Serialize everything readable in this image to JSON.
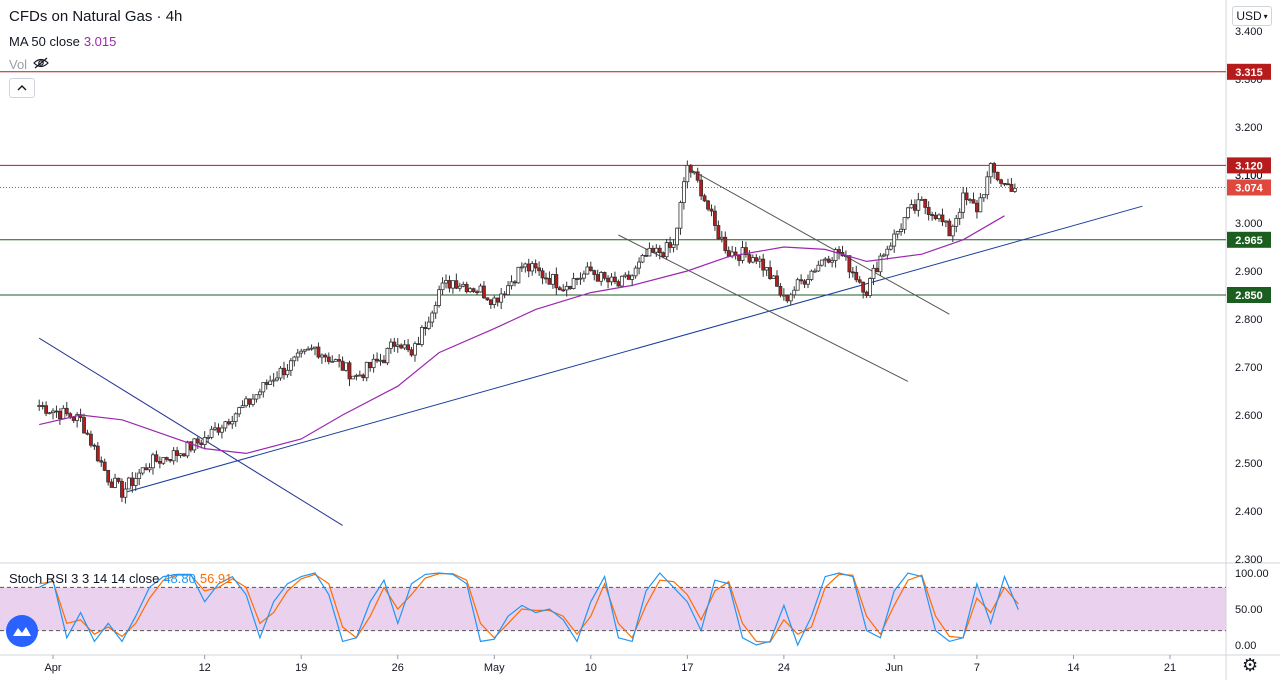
{
  "header": {
    "title": "CFDs on Natural Gas · 4h",
    "ma_label": "MA 50 close",
    "ma_value": "3.015",
    "vol_label": "Vol",
    "collapse_icon": "chevron-up-icon"
  },
  "currency_select": "USD",
  "indicator": {
    "label": "Stoch RSI 3 3 14 14 close",
    "k_value": "48.80",
    "d_value": "56.91"
  },
  "chart_data": {
    "type": "candlestick",
    "price_axis": {
      "ticks": [
        "3.400",
        "3.300",
        "3.200",
        "3.100",
        "3.000",
        "2.900",
        "2.800",
        "2.700",
        "2.600",
        "2.500",
        "2.400",
        "2.300"
      ],
      "range": [
        2.3,
        3.42
      ]
    },
    "time_axis": {
      "ticks": [
        "Apr",
        "12",
        "19",
        "26",
        "May",
        "10",
        "17",
        "24",
        "Jun",
        "7",
        "14",
        "21"
      ]
    },
    "horizontal_levels": [
      {
        "price": 3.315,
        "label": "3.315",
        "color": "#b71c1c"
      },
      {
        "price": 3.12,
        "label": "3.120",
        "color": "#b71c1c"
      },
      {
        "price": 2.965,
        "label": "2.965",
        "color": "#1b5e20"
      },
      {
        "price": 2.85,
        "label": "2.850",
        "color": "#1b5e20"
      }
    ],
    "last_price": {
      "price": 3.074,
      "label": "3.074",
      "color": "#e0483d"
    },
    "hidden_tag": "3.100",
    "trendlines": [
      {
        "name": "uptrend-support",
        "from": [
          "Apr 6",
          2.437
        ],
        "to": [
          "Jun 19",
          3.035
        ],
        "color": "#1a3e9c"
      },
      {
        "name": "downtrend-april",
        "from": [
          "Mar 31",
          2.76
        ],
        "to": [
          "Apr 22",
          2.37
        ],
        "color": "#283593"
      },
      {
        "name": "channel-upper",
        "from": [
          "May 17",
          3.115
        ],
        "to": [
          "Jun 5",
          2.81
        ],
        "color": "#555555"
      },
      {
        "name": "channel-lower",
        "from": [
          "May 12",
          2.975
        ],
        "to": [
          "Jun 2",
          2.67
        ],
        "color": "#555555"
      }
    ],
    "ma50": {
      "name": "MA 50 close",
      "color": "#9c27b0",
      "points": [
        [
          "Mar 31",
          2.58
        ],
        [
          "Apr 3",
          2.6
        ],
        [
          "Apr 6",
          2.59
        ],
        [
          "Apr 9",
          2.56
        ],
        [
          "Apr 12",
          2.53
        ],
        [
          "Apr 15",
          2.52
        ],
        [
          "Apr 19",
          2.55
        ],
        [
          "Apr 22",
          2.6
        ],
        [
          "Apr 26",
          2.66
        ],
        [
          "Apr 29",
          2.73
        ],
        [
          "May 3",
          2.78
        ],
        [
          "May 6",
          2.82
        ],
        [
          "May 10",
          2.855
        ],
        [
          "May 13",
          2.87
        ],
        [
          "May 17",
          2.9
        ],
        [
          "May 20",
          2.93
        ],
        [
          "May 24",
          2.95
        ],
        [
          "May 27",
          2.945
        ],
        [
          "May 30",
          2.92
        ],
        [
          "Jun 3",
          2.935
        ],
        [
          "Jun 6",
          2.965
        ],
        [
          "Jun 9",
          3.015
        ]
      ]
    },
    "closes": [
      [
        "Mar 31",
        2.62
      ],
      [
        "Apr 2",
        2.6
      ],
      [
        "Apr 3",
        2.59
      ],
      [
        "Apr 5",
        2.47
      ],
      [
        "Apr 6",
        2.44
      ],
      [
        "Apr 8",
        2.5
      ],
      [
        "Apr 10",
        2.52
      ],
      [
        "Apr 12",
        2.55
      ],
      [
        "Apr 14",
        2.6
      ],
      [
        "Apr 15",
        2.62
      ],
      [
        "Apr 17",
        2.68
      ],
      [
        "Apr 19",
        2.72
      ],
      [
        "Apr 20",
        2.74
      ],
      [
        "Apr 22",
        2.7
      ],
      [
        "Apr 23",
        2.68
      ],
      [
        "Apr 25",
        2.72
      ],
      [
        "Apr 26",
        2.76
      ],
      [
        "Apr 27",
        2.72
      ],
      [
        "Apr 28",
        2.79
      ],
      [
        "Apr 29",
        2.86
      ],
      [
        "Apr 30",
        2.88
      ],
      [
        "May 2",
        2.86
      ],
      [
        "May 3",
        2.84
      ],
      [
        "May 4",
        2.87
      ],
      [
        "May 5",
        2.91
      ],
      [
        "May 6",
        2.9
      ],
      [
        "May 8",
        2.87
      ],
      [
        "May 10",
        2.9
      ],
      [
        "May 11",
        2.88
      ],
      [
        "May 12",
        2.87
      ],
      [
        "May 13",
        2.89
      ],
      [
        "May 14",
        2.93
      ],
      [
        "May 16",
        2.95
      ],
      [
        "May 17",
        3.12
      ],
      [
        "May 18",
        3.07
      ],
      [
        "May 19",
        2.99
      ],
      [
        "May 20",
        2.94
      ],
      [
        "May 22",
        2.93
      ],
      [
        "May 23",
        2.89
      ],
      [
        "May 24",
        2.84
      ],
      [
        "May 25",
        2.87
      ],
      [
        "May 27",
        2.93
      ],
      [
        "May 28",
        2.94
      ],
      [
        "May 30",
        2.86
      ],
      [
        "May 31",
        2.93
      ],
      [
        "Jun 1",
        2.97
      ],
      [
        "Jun 2",
        3.02
      ],
      [
        "Jun 3",
        3.04
      ],
      [
        "Jun 4",
        3.02
      ],
      [
        "Jun 5",
        2.98
      ],
      [
        "Jun 6",
        3.05
      ],
      [
        "Jun 7",
        3.03
      ],
      [
        "Jun 8",
        3.11
      ],
      [
        "Jun 9",
        3.08
      ],
      [
        "Jun 10",
        3.074
      ]
    ],
    "stoch_rsi": {
      "ticks": [
        "100.00",
        "50.00",
        "0.00"
      ],
      "bands": [
        80,
        20
      ],
      "k_color": "#2196f3",
      "d_color": "#ff6d00",
      "k": [
        [
          "Mar 31",
          80
        ],
        [
          "Apr 1",
          90
        ],
        [
          "Apr 2",
          10
        ],
        [
          "Apr 3",
          45
        ],
        [
          "Apr 4",
          5
        ],
        [
          "Apr 5",
          30
        ],
        [
          "Apr 6",
          5
        ],
        [
          "Apr 7",
          40
        ],
        [
          "Apr 8",
          80
        ],
        [
          "Apr 9",
          95
        ],
        [
          "Apr 10",
          98
        ],
        [
          "Apr 11",
          98
        ],
        [
          "Apr 12",
          60
        ],
        [
          "Apr 13",
          85
        ],
        [
          "Apr 14",
          95
        ],
        [
          "Apr 15",
          70
        ],
        [
          "Apr 16",
          10
        ],
        [
          "Apr 17",
          60
        ],
        [
          "Apr 18",
          85
        ],
        [
          "Apr 19",
          95
        ],
        [
          "Apr 20",
          100
        ],
        [
          "Apr 21",
          70
        ],
        [
          "Apr 22",
          5
        ],
        [
          "Apr 23",
          10
        ],
        [
          "Apr 24",
          60
        ],
        [
          "Apr 25",
          90
        ],
        [
          "Apr 26",
          30
        ],
        [
          "Apr 27",
          85
        ],
        [
          "Apr 28",
          98
        ],
        [
          "Apr 29",
          100
        ],
        [
          "Apr 30",
          98
        ],
        [
          "May 1",
          85
        ],
        [
          "May 2",
          5
        ],
        [
          "May 3",
          8
        ],
        [
          "May 4",
          40
        ],
        [
          "May 5",
          55
        ],
        [
          "May 6",
          45
        ],
        [
          "May 7",
          50
        ],
        [
          "May 8",
          35
        ],
        [
          "May 9",
          5
        ],
        [
          "May 10",
          60
        ],
        [
          "May 11",
          95
        ],
        [
          "May 12",
          10
        ],
        [
          "May 13",
          5
        ],
        [
          "May 14",
          75
        ],
        [
          "May 15",
          100
        ],
        [
          "May 16",
          80
        ],
        [
          "May 17",
          60
        ],
        [
          "May 18",
          20
        ],
        [
          "May 19",
          90
        ],
        [
          "May 20",
          85
        ],
        [
          "May 21",
          10
        ],
        [
          "May 22",
          0
        ],
        [
          "May 23",
          5
        ],
        [
          "May 24",
          55
        ],
        [
          "May 25",
          0
        ],
        [
          "May 26",
          40
        ],
        [
          "May 27",
          95
        ],
        [
          "May 28",
          100
        ],
        [
          "May 29",
          95
        ],
        [
          "May 30",
          20
        ],
        [
          "May 31",
          10
        ],
        [
          "Jun 1",
          75
        ],
        [
          "Jun 2",
          100
        ],
        [
          "Jun 3",
          95
        ],
        [
          "Jun 4",
          20
        ],
        [
          "Jun 5",
          5
        ],
        [
          "Jun 6",
          10
        ],
        [
          "Jun 7",
          85
        ],
        [
          "Jun 8",
          30
        ],
        [
          "Jun 9",
          95
        ],
        [
          "Jun 10",
          49
        ]
      ],
      "d": [
        [
          "Mar 31",
          85
        ],
        [
          "Apr 1",
          88
        ],
        [
          "Apr 2",
          30
        ],
        [
          "Apr 3",
          35
        ],
        [
          "Apr 4",
          15
        ],
        [
          "Apr 5",
          25
        ],
        [
          "Apr 6",
          12
        ],
        [
          "Apr 7",
          30
        ],
        [
          "Apr 8",
          65
        ],
        [
          "Apr 9",
          90
        ],
        [
          "Apr 10",
          97
        ],
        [
          "Apr 11",
          97
        ],
        [
          "Apr 12",
          75
        ],
        [
          "Apr 13",
          80
        ],
        [
          "Apr 14",
          92
        ],
        [
          "Apr 15",
          80
        ],
        [
          "Apr 16",
          30
        ],
        [
          "Apr 17",
          45
        ],
        [
          "Apr 18",
          75
        ],
        [
          "Apr 19",
          92
        ],
        [
          "Apr 20",
          98
        ],
        [
          "Apr 21",
          85
        ],
        [
          "Apr 22",
          25
        ],
        [
          "Apr 23",
          10
        ],
        [
          "Apr 24",
          40
        ],
        [
          "Apr 25",
          80
        ],
        [
          "Apr 26",
          50
        ],
        [
          "Apr 27",
          70
        ],
        [
          "Apr 28",
          93
        ],
        [
          "Apr 29",
          99
        ],
        [
          "Apr 30",
          99
        ],
        [
          "May 1",
          90
        ],
        [
          "May 2",
          30
        ],
        [
          "May 3",
          10
        ],
        [
          "May 4",
          30
        ],
        [
          "May 5",
          50
        ],
        [
          "May 6",
          48
        ],
        [
          "May 7",
          48
        ],
        [
          "May 8",
          40
        ],
        [
          "May 9",
          15
        ],
        [
          "May 10",
          40
        ],
        [
          "May 11",
          85
        ],
        [
          "May 12",
          30
        ],
        [
          "May 13",
          10
        ],
        [
          "May 14",
          55
        ],
        [
          "May 15",
          90
        ],
        [
          "May 16",
          88
        ],
        [
          "May 17",
          70
        ],
        [
          "May 18",
          35
        ],
        [
          "May 19",
          75
        ],
        [
          "May 20",
          88
        ],
        [
          "May 21",
          30
        ],
        [
          "May 22",
          5
        ],
        [
          "May 23",
          4
        ],
        [
          "May 24",
          35
        ],
        [
          "May 25",
          15
        ],
        [
          "May 26",
          25
        ],
        [
          "May 27",
          80
        ],
        [
          "May 28",
          98
        ],
        [
          "May 29",
          97
        ],
        [
          "May 30",
          40
        ],
        [
          "May 31",
          15
        ],
        [
          "Jun 1",
          55
        ],
        [
          "Jun 2",
          90
        ],
        [
          "Jun 3",
          97
        ],
        [
          "Jun 4",
          40
        ],
        [
          "Jun 5",
          12
        ],
        [
          "Jun 6",
          10
        ],
        [
          "Jun 7",
          65
        ],
        [
          "Jun 8",
          45
        ],
        [
          "Jun 9",
          80
        ],
        [
          "Jun 10",
          57
        ]
      ]
    }
  }
}
